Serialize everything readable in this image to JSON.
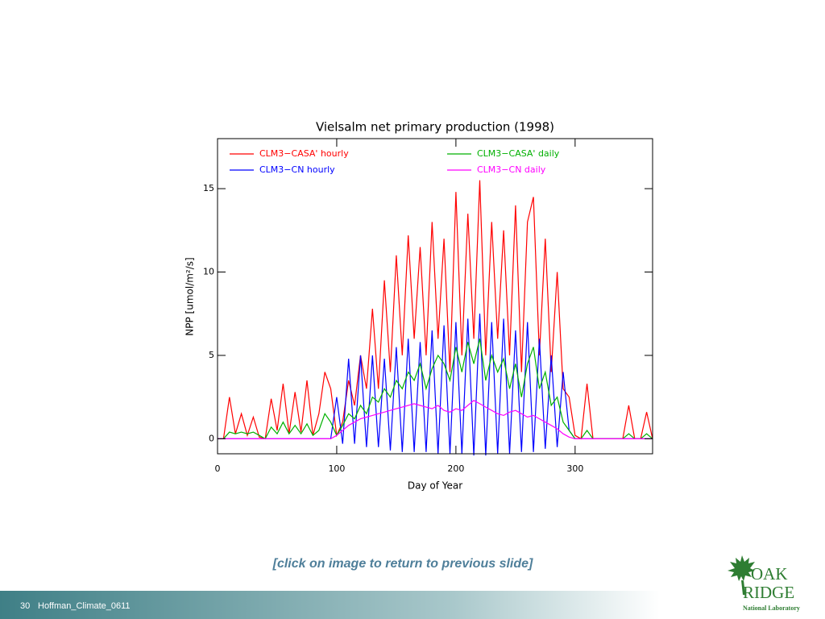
{
  "chart_data": {
    "type": "line",
    "title": "Vielsalm net primary production (1998)",
    "xlabel": "Day of Year",
    "ylabel": "NPP [umol/m²/s]",
    "xlim": [
      0,
      365
    ],
    "ylim": [
      -0.9,
      18
    ],
    "xticks": [
      0,
      100,
      200,
      300
    ],
    "yticks": [
      0,
      5,
      10,
      15
    ],
    "x": [
      0,
      5,
      10,
      15,
      20,
      25,
      30,
      35,
      40,
      45,
      50,
      55,
      60,
      65,
      70,
      75,
      80,
      85,
      90,
      95,
      100,
      105,
      110,
      115,
      120,
      125,
      130,
      135,
      140,
      145,
      150,
      155,
      160,
      165,
      170,
      175,
      180,
      185,
      190,
      195,
      200,
      205,
      210,
      215,
      220,
      225,
      230,
      235,
      240,
      245,
      250,
      255,
      260,
      265,
      270,
      275,
      280,
      285,
      290,
      295,
      300,
      305,
      310,
      315,
      320,
      325,
      330,
      335,
      340,
      345,
      350,
      355,
      360,
      365
    ],
    "series": [
      {
        "name": "CLM3−CASA' hourly",
        "color": "#ff0000",
        "values": [
          0,
          0,
          2.5,
          0.3,
          1.5,
          0.2,
          1.3,
          0.1,
          0,
          2.4,
          0.5,
          3.3,
          0.3,
          2.8,
          0.4,
          3.5,
          0.2,
          1.5,
          4.0,
          3.0,
          0.2,
          1.0,
          3.5,
          2.0,
          5.0,
          3.0,
          7.8,
          3,
          9.5,
          4,
          11,
          5,
          12.2,
          6,
          11.5,
          5,
          13,
          6,
          12,
          4,
          14.8,
          5,
          13.5,
          6,
          15.5,
          5,
          13,
          6,
          12.5,
          5,
          14,
          4,
          13,
          14.5,
          5,
          12,
          4,
          10,
          3,
          2.5,
          0.2,
          0,
          3.3,
          0,
          0,
          0,
          0,
          0,
          0,
          2.0,
          0,
          0,
          1.6,
          0
        ]
      },
      {
        "name": "CLM3−CN hourly",
        "color": "#0000ff",
        "values": [
          0,
          0,
          0,
          0,
          0,
          0,
          0,
          0,
          0,
          0,
          0,
          0,
          0,
          0,
          0,
          0,
          0,
          0,
          0,
          0,
          2.5,
          -0.3,
          4.8,
          -0.3,
          5,
          -0.5,
          5,
          -0.5,
          4.8,
          -0.7,
          5.5,
          -0.8,
          6,
          -0.8,
          5.8,
          -0.8,
          6.5,
          -0.9,
          6.8,
          -0.9,
          7,
          -0.9,
          7.2,
          -1,
          7.5,
          -1,
          7,
          -0.9,
          7.2,
          -0.9,
          6.5,
          -0.8,
          7,
          -0.8,
          6,
          -0.6,
          5,
          -0.5,
          4,
          0.5,
          0,
          0,
          0,
          0,
          0,
          0,
          0,
          0,
          0,
          0,
          0,
          0,
          0,
          0
        ]
      },
      {
        "name": "CLM3−CASA' daily",
        "color": "#00b000",
        "values": [
          0,
          0,
          0.4,
          0.3,
          0.4,
          0.3,
          0.4,
          0.2,
          0,
          0.7,
          0.3,
          1.0,
          0.3,
          0.8,
          0.3,
          0.9,
          0.2,
          0.5,
          1.5,
          1.0,
          0.2,
          0.8,
          1.5,
          1.2,
          2.0,
          1.5,
          2.5,
          2.2,
          3.0,
          2.5,
          3.5,
          3.0,
          4.0,
          3.5,
          4.5,
          3.0,
          4.2,
          5,
          4.5,
          3.5,
          5.5,
          4,
          5.8,
          4.5,
          6,
          3.5,
          5,
          4,
          4.8,
          3,
          4.5,
          2.5,
          4.5,
          5.5,
          3,
          4,
          2,
          2.5,
          1.0,
          0.5,
          0,
          0,
          0.5,
          0,
          0,
          0,
          0,
          0,
          0,
          0.3,
          0,
          0,
          0.3,
          0
        ]
      },
      {
        "name": "CLM3−CN daily",
        "color": "#ff00ff",
        "values": [
          0,
          0,
          0,
          0,
          0,
          0,
          0,
          0,
          0,
          0,
          0,
          0,
          0,
          0,
          0,
          0,
          0,
          0,
          0,
          0,
          0.2,
          0.5,
          0.8,
          1.0,
          1.2,
          1.3,
          1.4,
          1.5,
          1.6,
          1.7,
          1.8,
          1.9,
          2.0,
          2.1,
          2.0,
          1.9,
          1.8,
          2.0,
          1.7,
          1.6,
          1.8,
          1.7,
          2.0,
          2.3,
          2.1,
          1.9,
          1.7,
          1.5,
          1.4,
          1.6,
          1.7,
          1.5,
          1.3,
          1.4,
          1.2,
          1.0,
          0.8,
          0.6,
          0.3,
          0.1,
          0,
          0,
          0,
          0,
          0,
          0,
          0,
          0,
          0,
          0,
          0,
          0,
          0,
          0
        ]
      }
    ]
  },
  "caption": "[click on image to return to previous slide]",
  "footer": {
    "page": "30",
    "text": "Hoffman_Climate_0611"
  },
  "logo": {
    "line1": "OAK",
    "line2": "RIDGE",
    "line3": "National Laboratory"
  }
}
